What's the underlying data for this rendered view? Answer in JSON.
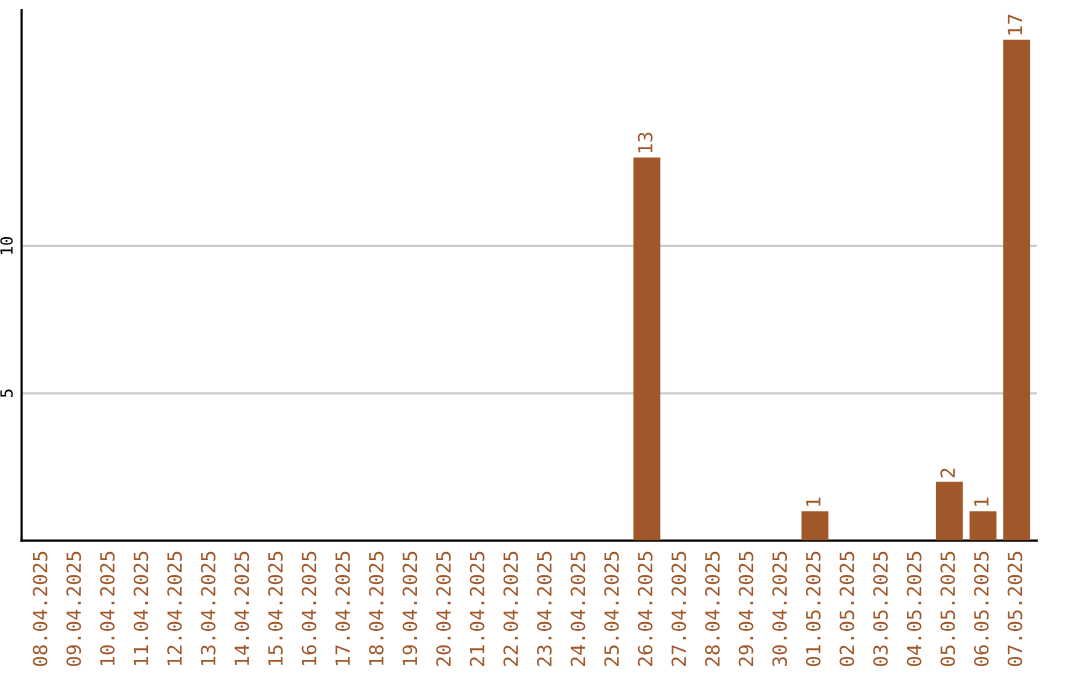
{
  "chart_data": {
    "type": "bar",
    "categories": [
      "08.04.2025",
      "09.04.2025",
      "10.04.2025",
      "11.04.2025",
      "12.04.2025",
      "13.04.2025",
      "14.04.2025",
      "15.04.2025",
      "16.04.2025",
      "17.04.2025",
      "18.04.2025",
      "19.04.2025",
      "20.04.2025",
      "21.04.2025",
      "22.04.2025",
      "23.04.2025",
      "24.04.2025",
      "25.04.2025",
      "26.04.2025",
      "27.04.2025",
      "28.04.2025",
      "29.04.2025",
      "30.04.2025",
      "01.05.2025",
      "02.05.2025",
      "03.05.2025",
      "04.05.2025",
      "05.05.2025",
      "06.05.2025",
      "07.05.2025"
    ],
    "values": [
      0,
      0,
      0,
      0,
      0,
      0,
      0,
      0,
      0,
      0,
      0,
      0,
      0,
      0,
      0,
      0,
      0,
      0,
      13,
      0,
      0,
      0,
      0,
      1,
      0,
      0,
      0,
      2,
      1,
      17
    ],
    "value_labels": [
      null,
      null,
      null,
      null,
      null,
      null,
      null,
      null,
      null,
      null,
      null,
      null,
      null,
      null,
      null,
      null,
      null,
      null,
      "13",
      null,
      null,
      null,
      null,
      "1",
      null,
      null,
      null,
      "2",
      "1",
      "17"
    ],
    "color": "#a0582a",
    "ylim": [
      0,
      18
    ],
    "yticks": [
      5,
      10
    ],
    "grid": "y"
  }
}
